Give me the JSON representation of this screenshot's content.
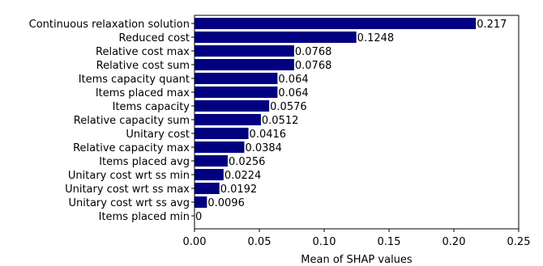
{
  "chart_data": {
    "type": "bar",
    "orientation": "horizontal",
    "title": "",
    "xlabel": "Mean of SHAP values",
    "ylabel": "",
    "xlim": [
      0,
      0.25
    ],
    "xticks": [
      "0.00",
      "0.05",
      "0.10",
      "0.15",
      "0.20",
      "0.25"
    ],
    "grid": false,
    "bar_color": "#000080",
    "categories": [
      "Continuous relaxation solution",
      "Reduced cost",
      "Relative cost max",
      "Relative cost sum",
      "Items capacity quant",
      "Items placed max",
      "Items capacity",
      "Relative capacity sum",
      "Unitary cost",
      "Relative capacity max",
      "Items placed avg",
      "Unitary cost wrt ss min",
      "Unitary cost wrt ss max",
      "Unitary cost wrt ss avg",
      "Items placed min"
    ],
    "values": [
      0.217,
      0.1248,
      0.0768,
      0.0768,
      0.064,
      0.064,
      0.0576,
      0.0512,
      0.0416,
      0.0384,
      0.0256,
      0.0224,
      0.0192,
      0.0096,
      0
    ],
    "value_labels": [
      "0.217",
      "0.1248",
      "0.0768",
      "0.0768",
      "0.064",
      "0.064",
      "0.0576",
      "0.0512",
      "0.0416",
      "0.0384",
      "0.0256",
      "0.0224",
      "0.0192",
      "0.0096",
      "0"
    ]
  }
}
